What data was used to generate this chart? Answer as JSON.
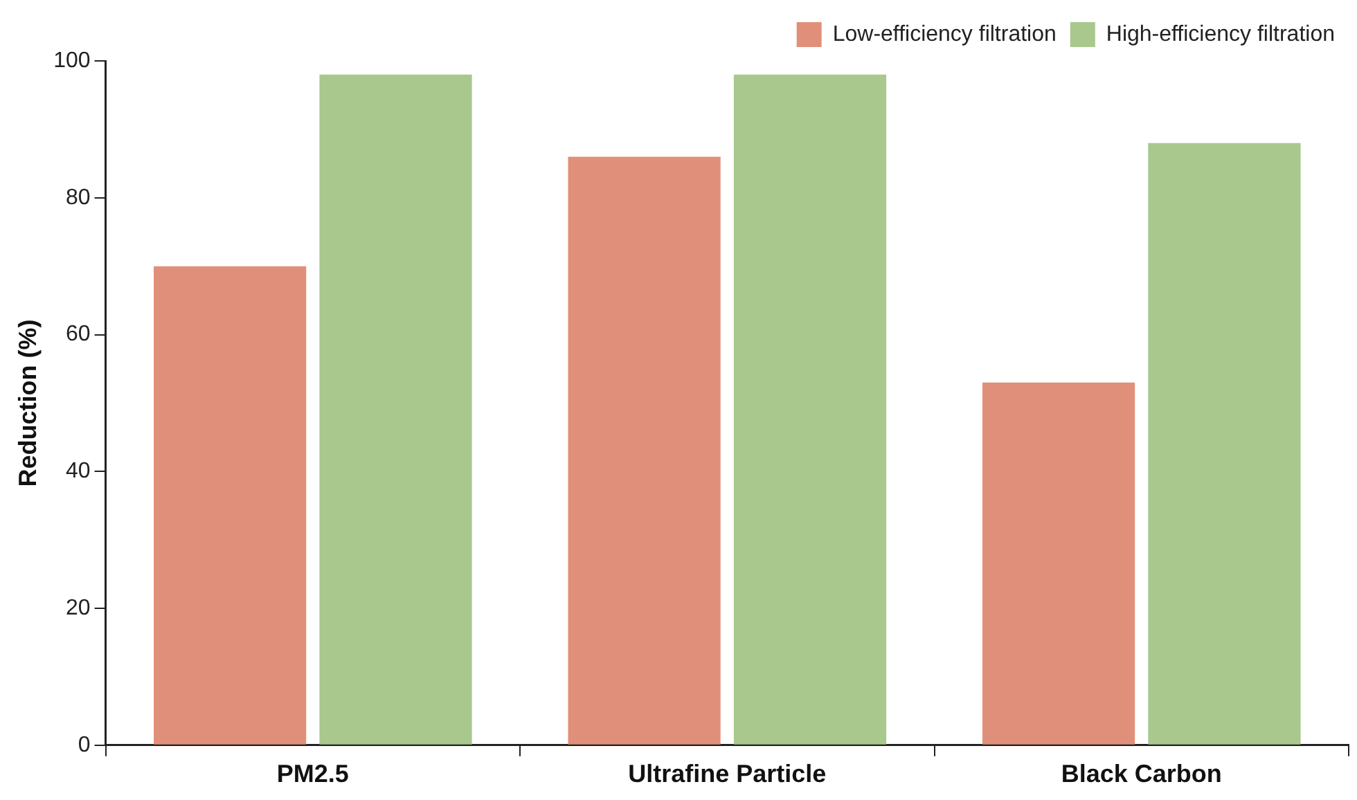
{
  "chart_data": {
    "type": "bar",
    "ylabel": "Reduction (%)",
    "categories": [
      "PM2.5",
      "Ultrafine Particle",
      "Black Carbon"
    ],
    "series": [
      {
        "name": "Low-efficiency filtration",
        "color": "#e0907a",
        "values": [
          70,
          86,
          53
        ]
      },
      {
        "name": "High-efficiency filtration",
        "color": "#a8c88e",
        "values": [
          98,
          98,
          88
        ]
      }
    ],
    "ylim": [
      0,
      100
    ],
    "yticks": [
      0,
      20,
      40,
      60,
      80,
      100
    ],
    "grid": false,
    "legend": "top right"
  }
}
